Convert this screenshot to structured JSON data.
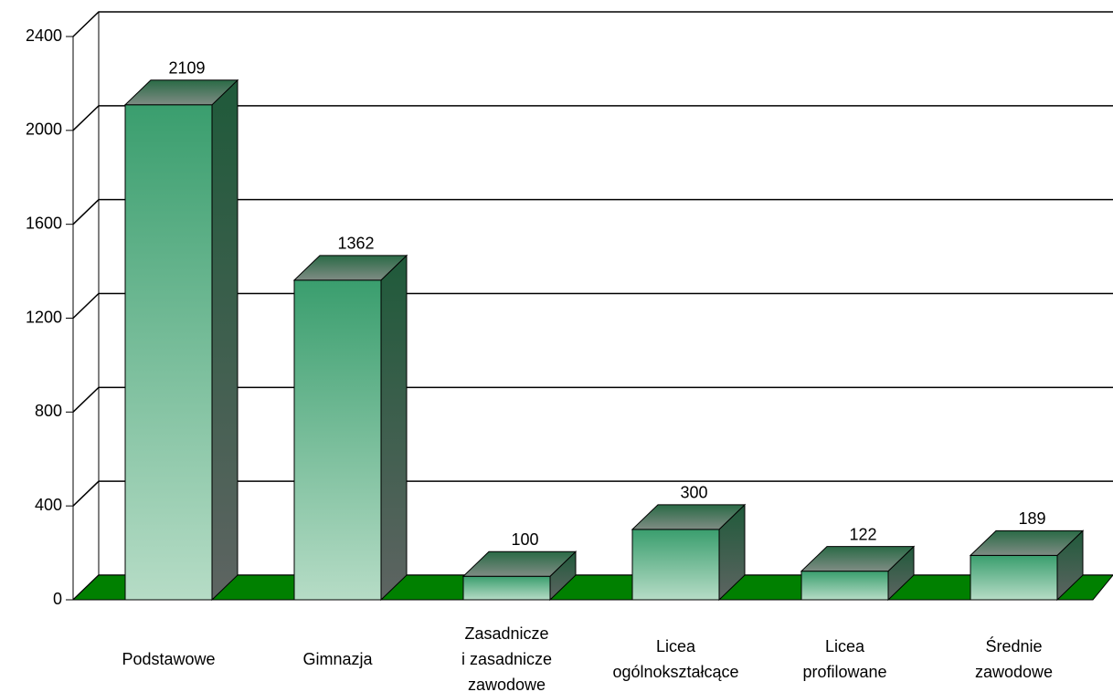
{
  "chart_data": {
    "type": "bar3d",
    "categories": [
      "Podstawowe",
      "Gimnazja",
      "Zasadnicze\ni zasadnicze\nzawodowe",
      "Licea\nogólnokształcące",
      "Licea\nprofilowane",
      "Średnie\nzawodowe"
    ],
    "values": [
      2109,
      1362,
      100,
      300,
      122,
      189
    ],
    "color": "#3a9e6e",
    "floor_color": "#008000",
    "ylim": [
      0,
      2400
    ],
    "yticks": [
      0,
      400,
      800,
      1200,
      1600,
      2000,
      2400
    ],
    "grid": true
  }
}
